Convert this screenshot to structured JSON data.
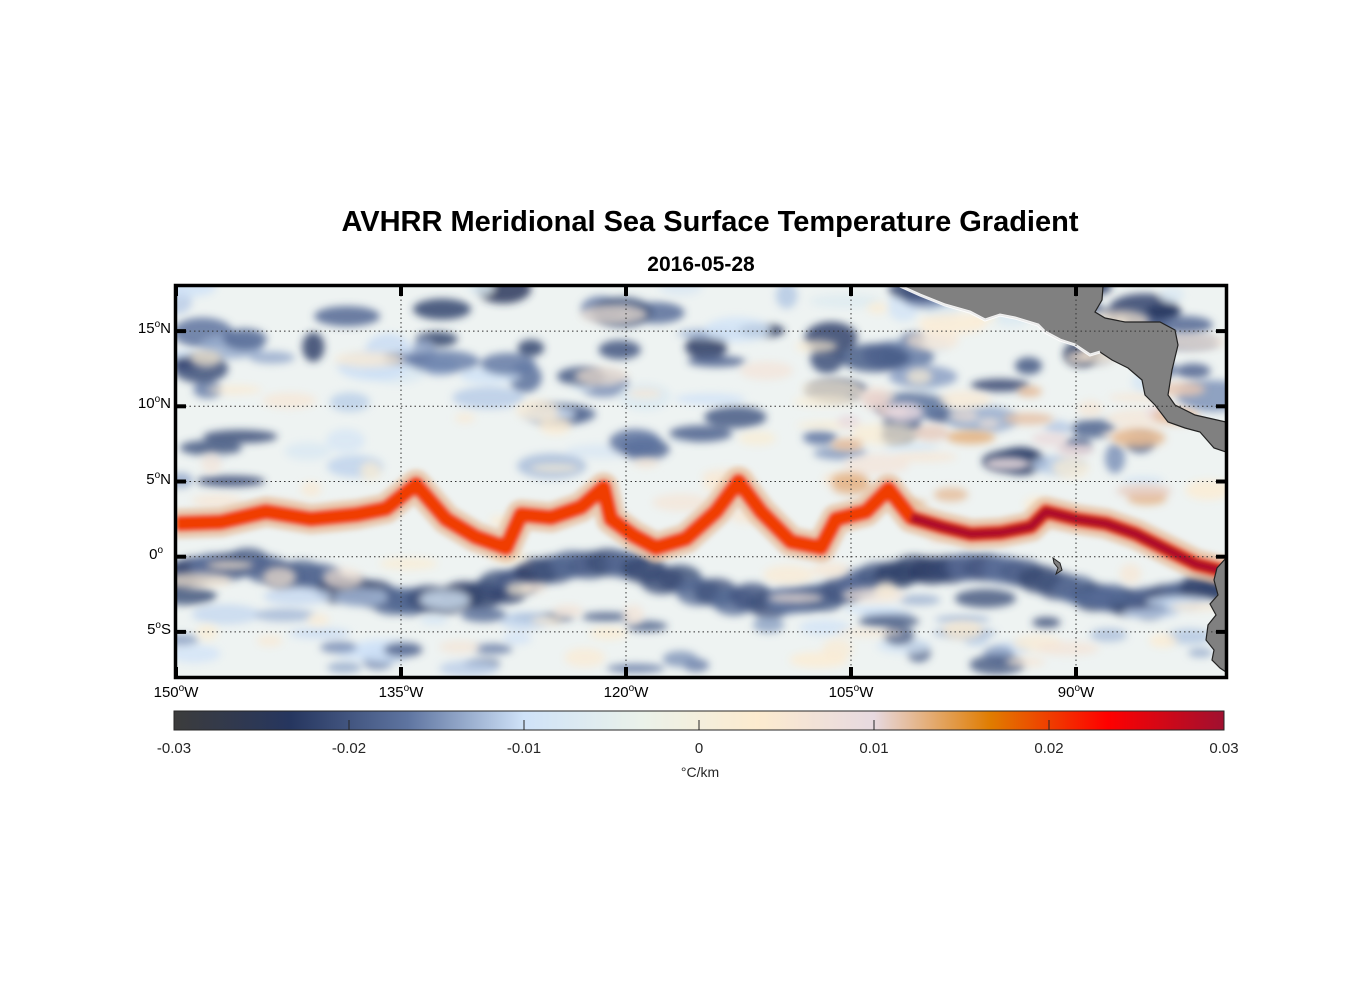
{
  "title": "AVHRR Meridional Sea Surface Temperature Gradient",
  "subtitle": "2016-05-28",
  "chart_data": {
    "type": "heatmap",
    "title": "AVHRR Meridional Sea Surface Temperature Gradient",
    "subtitle": "2016-05-28",
    "projection": "equirectangular",
    "lon_range": [
      -150,
      -80
    ],
    "lat_range": [
      -8,
      18
    ],
    "grid": "dotted",
    "y_ticks": [
      {
        "value": 15,
        "deg": "15",
        "hemi": "N"
      },
      {
        "value": 10,
        "deg": "10",
        "hemi": "N"
      },
      {
        "value": 5,
        "deg": "5",
        "hemi": "N"
      },
      {
        "value": 0,
        "deg": "0",
        "hemi": ""
      },
      {
        "value": -5,
        "deg": "5",
        "hemi": "S"
      }
    ],
    "x_ticks": [
      {
        "value": -150,
        "deg": "150",
        "hemi": "W"
      },
      {
        "value": -135,
        "deg": "135",
        "hemi": "W"
      },
      {
        "value": -120,
        "deg": "120",
        "hemi": "W"
      },
      {
        "value": -105,
        "deg": "105",
        "hemi": "W"
      },
      {
        "value": -90,
        "deg": "90",
        "hemi": "W"
      }
    ],
    "colorbar": {
      "min": -0.03,
      "max": 0.03,
      "ticks": [
        "-0.03",
        "-0.02",
        "-0.01",
        "0",
        "0.01",
        "0.02",
        "0.03"
      ],
      "tick_values": [
        -0.03,
        -0.02,
        -0.01,
        0,
        0.01,
        0.02,
        0.03
      ],
      "label": "°C/km",
      "placement": "bottom",
      "colors": [
        "#3c3c3c",
        "#26365f",
        "#5e74a0",
        "#cfe2f8",
        "#eaf2ea",
        "#fdebcf",
        "#e7d9e0",
        "#e07c00",
        "#ff0000",
        "#a01030"
      ]
    },
    "features": {
      "land_color": "#808080",
      "warm_front_band": "sinusoidal tropical-instability-wave front along ~0-5N with positive gradients up to ~0.03 °C/km",
      "cold_band": "negative gradients up to ~-0.025 °C/km just south of the equator"
    }
  }
}
